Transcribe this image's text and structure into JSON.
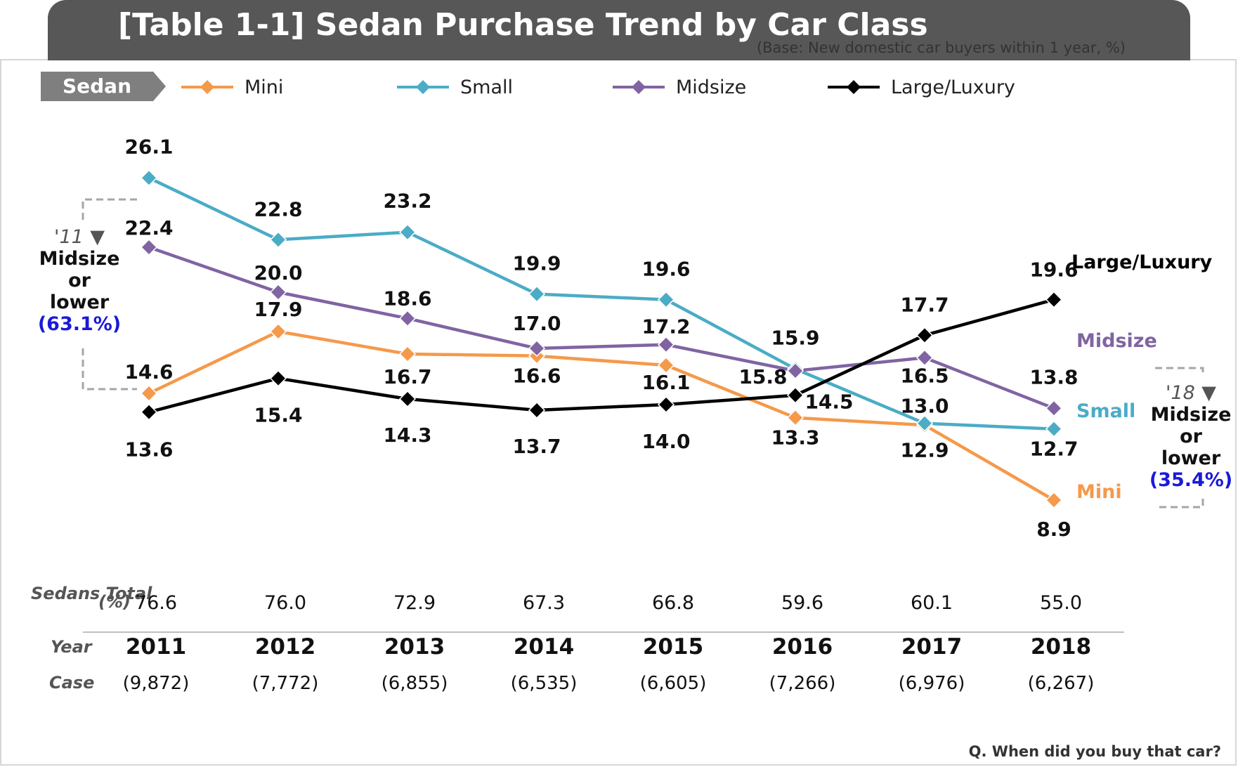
{
  "header": {
    "title": "[Table 1-1] Sedan Purchase Trend by Car Class",
    "base_note": "(Base: New domestic car buyers within 1 year, %)"
  },
  "legend": {
    "tag": "Sedan",
    "items": [
      {
        "label": "Mini",
        "color": "#f5994a"
      },
      {
        "label": "Small",
        "color": "#4bacc6"
      },
      {
        "label": "Midsize",
        "color": "#8064a2"
      },
      {
        "label": "Large/Luxury",
        "color": "#000000"
      }
    ]
  },
  "chart_data": {
    "type": "line",
    "categories": [
      "2011",
      "2012",
      "2013",
      "2014",
      "2015",
      "2016",
      "2017",
      "2018"
    ],
    "series": [
      {
        "name": "Mini",
        "color": "#f5994a",
        "values": [
          14.6,
          17.9,
          16.7,
          16.6,
          16.1,
          13.3,
          12.9,
          8.9
        ]
      },
      {
        "name": "Small",
        "color": "#4bacc6",
        "values": [
          26.1,
          22.8,
          23.2,
          19.9,
          19.6,
          15.9,
          13.0,
          12.7
        ]
      },
      {
        "name": "Midsize",
        "color": "#8064a2",
        "values": [
          22.4,
          20.0,
          18.6,
          17.0,
          17.2,
          15.8,
          16.5,
          13.8
        ]
      },
      {
        "name": "Large/Luxury",
        "color": "#000000",
        "values": [
          13.6,
          15.4,
          14.3,
          13.7,
          14.0,
          14.5,
          17.7,
          19.6
        ]
      }
    ],
    "end_labels": [
      "Mini",
      "Small",
      "Midsize",
      "Large/Luxury"
    ],
    "grid": false,
    "legend_position": "top"
  },
  "table": {
    "sedans_total_label": "Sedans Total",
    "percent_label": "(%)",
    "sedans_total": [
      "76.6",
      "76.0",
      "72.9",
      "67.3",
      "66.8",
      "59.6",
      "60.1",
      "55.0"
    ],
    "year_label": "Year",
    "years": [
      "2011",
      "2012",
      "2013",
      "2014",
      "2015",
      "2016",
      "2017",
      "2018"
    ],
    "case_label": "Case",
    "cases": [
      "(9,872)",
      "(7,772)",
      "(6,855)",
      "(6,535)",
      "(6,605)",
      "(7,266)",
      "(6,976)",
      "(6,267)"
    ]
  },
  "notes": {
    "left": {
      "year": "'11",
      "line1": "Midsize",
      "line2": "or",
      "line3": "lower",
      "pct": "(63.1%)"
    },
    "right": {
      "year": "'18",
      "line1": "Midsize",
      "line2": "or",
      "line3": "lower",
      "pct": "(35.4%)"
    }
  },
  "question": "Q. When did you buy that car?"
}
